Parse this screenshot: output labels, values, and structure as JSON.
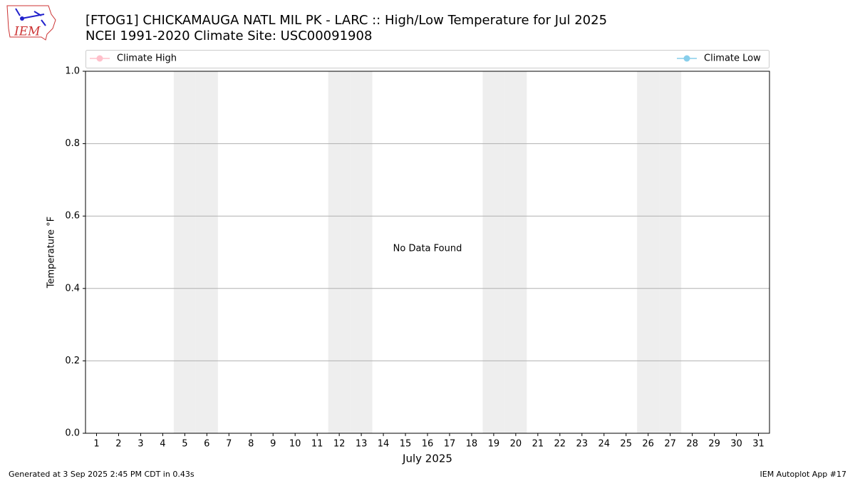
{
  "chart_data": {
    "type": "line",
    "title": "[FTOG1] CHICKAMAUGA NATL MIL PK - LARC :: High/Low Temperature for Jul 2025",
    "subtitle": "NCEI 1991-2020 Climate Site: USC00091908",
    "xlabel": "July 2025",
    "ylabel": "Temperature °F",
    "annotation": "No Data Found",
    "x": [
      1,
      2,
      3,
      4,
      5,
      6,
      7,
      8,
      9,
      10,
      11,
      12,
      13,
      14,
      15,
      16,
      17,
      18,
      19,
      20,
      21,
      22,
      23,
      24,
      25,
      26,
      27,
      28,
      29,
      30,
      31
    ],
    "series": [
      {
        "name": "Climate High",
        "color": "#ffc0cb",
        "values": [
          null,
          null,
          null,
          null,
          null,
          null,
          null,
          null,
          null,
          null,
          null,
          null,
          null,
          null,
          null,
          null,
          null,
          null,
          null,
          null,
          null,
          null,
          null,
          null,
          null,
          null,
          null,
          null,
          null,
          null,
          null
        ]
      },
      {
        "name": "Climate Low",
        "color": "#87ceeb",
        "values": [
          null,
          null,
          null,
          null,
          null,
          null,
          null,
          null,
          null,
          null,
          null,
          null,
          null,
          null,
          null,
          null,
          null,
          null,
          null,
          null,
          null,
          null,
          null,
          null,
          null,
          null,
          null,
          null,
          null,
          null,
          null
        ]
      }
    ],
    "shaded_days": [
      5,
      6,
      12,
      13,
      19,
      20,
      26,
      27
    ],
    "xlim": [
      0.5,
      31.5
    ],
    "xticks": [
      1,
      2,
      3,
      4,
      5,
      6,
      7,
      8,
      9,
      10,
      11,
      12,
      13,
      14,
      15,
      16,
      17,
      18,
      19,
      20,
      21,
      22,
      23,
      24,
      25,
      26,
      27,
      28,
      29,
      30,
      31
    ],
    "ylim": [
      0,
      1
    ],
    "yticks": [
      {
        "value": 0,
        "label": "0.0"
      },
      {
        "value": 0.2,
        "label": "0.2"
      },
      {
        "value": 0.4,
        "label": "0.4"
      },
      {
        "value": 0.6,
        "label": "0.6"
      },
      {
        "value": 0.8,
        "label": "0.8"
      },
      {
        "value": 1,
        "label": "1.0"
      }
    ],
    "grid": true,
    "legend": "top"
  },
  "logo_text": "IEM",
  "footer_left": "Generated at 3 Sep 2025 2:45 PM CDT in 0.43s",
  "footer_right": "IEM Autoplot App #17"
}
